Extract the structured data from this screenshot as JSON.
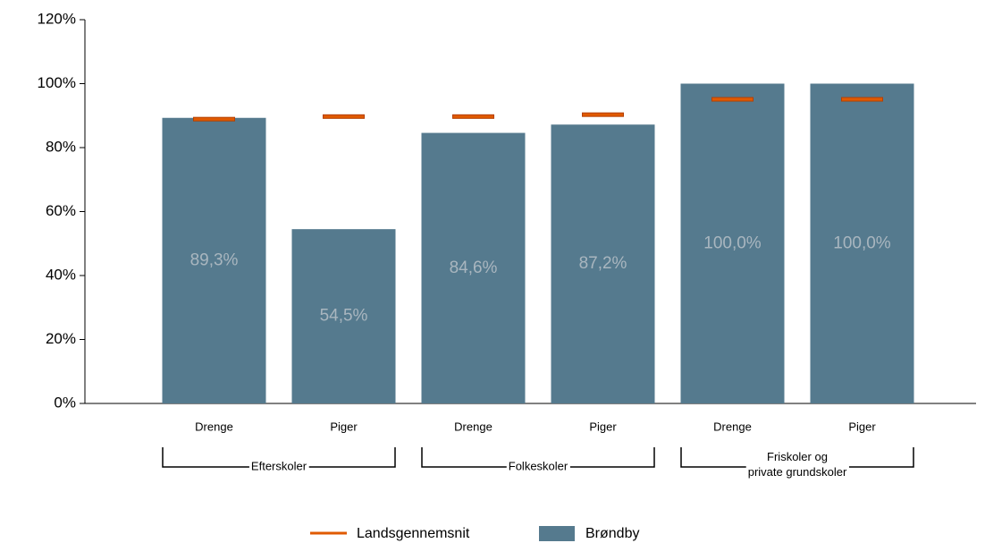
{
  "chart_data": {
    "type": "bar",
    "categories": [
      "Drenge",
      "Piger",
      "Drenge",
      "Piger",
      "Drenge",
      "Piger"
    ],
    "groups": [
      "Efterskoler",
      "Folkeskoler",
      "Friskoler og\nprivate grundskoler"
    ],
    "series": [
      {
        "name": "Brøndby",
        "color": "#557a8e",
        "values": [
          89.3,
          54.5,
          84.6,
          87.2,
          100,
          100
        ],
        "value_labels": [
          "89,3%",
          "54,5%",
          "84,6%",
          "87,2%",
          "100,0%",
          "100,0%"
        ]
      },
      {
        "name": "Landsgennemsnit",
        "type": "marker",
        "color": "#e05a00",
        "values": [
          88.9,
          89.7,
          89.7,
          90.3,
          95.1,
          95.1
        ]
      }
    ],
    "ylim": [
      0,
      120
    ],
    "yticks": [
      {
        "value": 0,
        "label": "0%"
      },
      {
        "value": 20,
        "label": "20%"
      },
      {
        "value": 40,
        "label": "40%"
      },
      {
        "value": 60,
        "label": "60%"
      },
      {
        "value": 80,
        "label": "80%"
      },
      {
        "value": 100,
        "label": "100%"
      },
      {
        "value": 120,
        "label": "120%"
      }
    ]
  }
}
